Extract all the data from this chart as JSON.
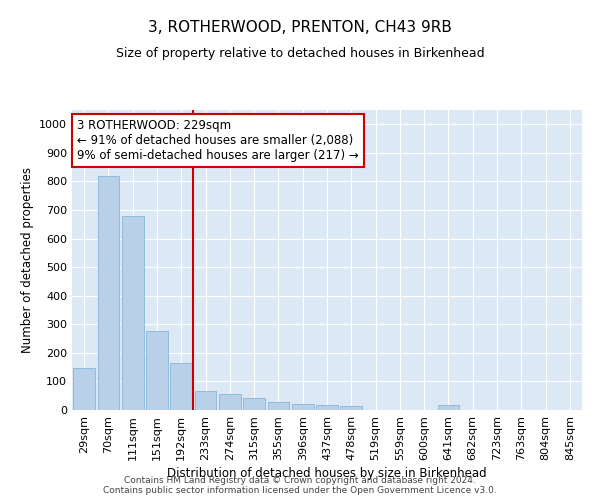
{
  "title": "3, ROTHERWOOD, PRENTON, CH43 9RB",
  "subtitle": "Size of property relative to detached houses in Birkenhead",
  "xlabel": "Distribution of detached houses by size in Birkenhead",
  "ylabel": "Number of detached properties",
  "categories": [
    "29sqm",
    "70sqm",
    "111sqm",
    "151sqm",
    "192sqm",
    "233sqm",
    "274sqm",
    "315sqm",
    "355sqm",
    "396sqm",
    "437sqm",
    "478sqm",
    "519sqm",
    "559sqm",
    "600sqm",
    "641sqm",
    "682sqm",
    "723sqm",
    "763sqm",
    "804sqm",
    "845sqm"
  ],
  "values": [
    148,
    820,
    680,
    275,
    165,
    68,
    55,
    42,
    28,
    20,
    18,
    15,
    0,
    0,
    0,
    18,
    0,
    0,
    0,
    0,
    0
  ],
  "bar_color": "#b8d0e8",
  "bar_edge_color": "#7aafd4",
  "line_color": "#cc0000",
  "annotation_text": "3 ROTHERWOOD: 229sqm\n← 91% of detached houses are smaller (2,088)\n9% of semi-detached houses are larger (217) →",
  "annotation_box_color": "#ffffff",
  "annotation_box_edge": "#cc0000",
  "ylim": [
    0,
    1050
  ],
  "yticks": [
    0,
    100,
    200,
    300,
    400,
    500,
    600,
    700,
    800,
    900,
    1000
  ],
  "plot_background": "#dce9f5",
  "footer_text": "Contains HM Land Registry data © Crown copyright and database right 2024.\nContains public sector information licensed under the Open Government Licence v3.0.",
  "title_fontsize": 11,
  "subtitle_fontsize": 9,
  "xlabel_fontsize": 8.5,
  "ylabel_fontsize": 8.5,
  "annotation_fontsize": 8.5,
  "tick_fontsize": 8,
  "footer_fontsize": 6.5
}
